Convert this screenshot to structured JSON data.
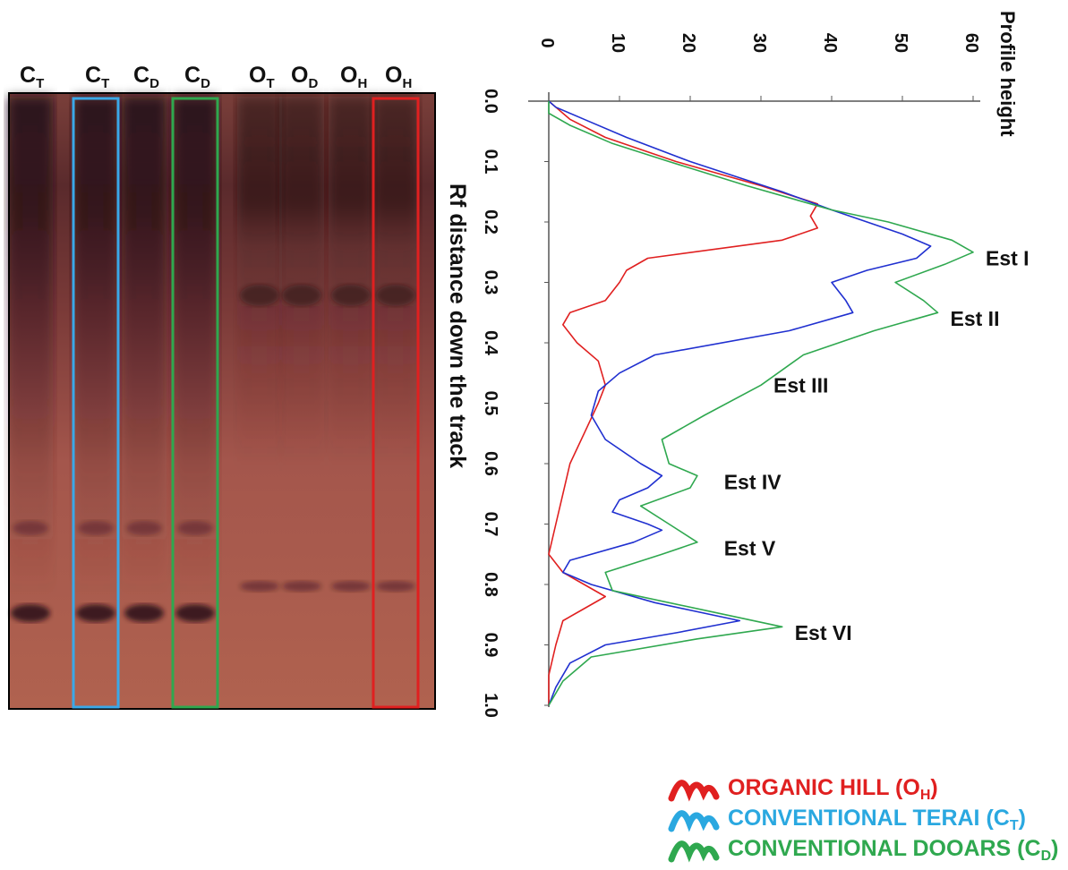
{
  "gel": {
    "lanes": [
      {
        "label": "C",
        "sub": "T"
      },
      {
        "label": "C",
        "sub": "T"
      },
      {
        "label": "C",
        "sub": "D"
      },
      {
        "label": "C",
        "sub": "D"
      },
      {
        "label": "O",
        "sub": "T"
      },
      {
        "label": "O",
        "sub": "D"
      },
      {
        "label": "O",
        "sub": "H"
      },
      {
        "label": "O",
        "sub": "H"
      }
    ],
    "highlighted_lanes": [
      {
        "lane_index": 1,
        "color": "#3aa8e8"
      },
      {
        "lane_index": 3,
        "color": "#2fa84f"
      },
      {
        "lane_index": 7,
        "color": "#e02020"
      }
    ]
  },
  "legend": [
    {
      "text": "ORGANIC  HILL (O",
      "sub": "H",
      "tail": ")",
      "color": "#e02020"
    },
    {
      "text": "CONVENTIONAL TERAI (C",
      "sub": "T",
      "tail": ")",
      "color": "#2aa8e0"
    },
    {
      "text": "CONVENTIONAL DOOARS (C",
      "sub": "D",
      "tail": ")",
      "color": "#2fa84f"
    }
  ],
  "chart_data": {
    "type": "line",
    "orientation": "rotated-90",
    "xlabel": "Rf distance down the track",
    "ylabel": "Profile height",
    "xlim": [
      0,
      1.0
    ],
    "ylim": [
      0,
      60
    ],
    "x_ticks": [
      "0.0",
      "0.1",
      "0.2",
      "0.3",
      "0.4",
      "0.5",
      "0.6",
      "0.7",
      "0.8",
      "0.9",
      "1.0"
    ],
    "y_ticks": [
      "0",
      "10",
      "20",
      "30",
      "40",
      "50",
      "60"
    ],
    "series": [
      {
        "name": "ORGANIC HILL (OH)",
        "color": "#e02020",
        "points": [
          [
            0.0,
            0
          ],
          [
            0.01,
            1
          ],
          [
            0.03,
            3
          ],
          [
            0.06,
            8
          ],
          [
            0.1,
            18
          ],
          [
            0.14,
            30
          ],
          [
            0.17,
            38
          ],
          [
            0.19,
            37
          ],
          [
            0.21,
            38
          ],
          [
            0.23,
            33
          ],
          [
            0.26,
            14
          ],
          [
            0.28,
            11
          ],
          [
            0.3,
            10
          ],
          [
            0.33,
            8
          ],
          [
            0.35,
            3
          ],
          [
            0.37,
            2
          ],
          [
            0.4,
            4
          ],
          [
            0.43,
            7
          ],
          [
            0.47,
            8
          ],
          [
            0.5,
            7
          ],
          [
            0.55,
            5
          ],
          [
            0.6,
            3
          ],
          [
            0.65,
            2
          ],
          [
            0.7,
            1
          ],
          [
            0.75,
            0
          ],
          [
            0.78,
            2
          ],
          [
            0.8,
            5
          ],
          [
            0.82,
            8
          ],
          [
            0.84,
            5
          ],
          [
            0.86,
            2
          ],
          [
            0.9,
            1
          ],
          [
            0.95,
            0
          ],
          [
            1.0,
            0
          ]
        ]
      },
      {
        "name": "CONVENTIONAL TERAI (CT)",
        "color": "#2030d0",
        "points": [
          [
            0.0,
            0
          ],
          [
            0.01,
            1
          ],
          [
            0.03,
            5
          ],
          [
            0.06,
            11
          ],
          [
            0.1,
            20
          ],
          [
            0.15,
            33
          ],
          [
            0.18,
            40
          ],
          [
            0.22,
            50
          ],
          [
            0.24,
            54
          ],
          [
            0.26,
            52
          ],
          [
            0.28,
            45
          ],
          [
            0.3,
            40
          ],
          [
            0.33,
            42
          ],
          [
            0.35,
            43
          ],
          [
            0.38,
            34
          ],
          [
            0.42,
            15
          ],
          [
            0.45,
            10
          ],
          [
            0.48,
            7
          ],
          [
            0.52,
            6
          ],
          [
            0.56,
            8
          ],
          [
            0.6,
            13
          ],
          [
            0.62,
            16
          ],
          [
            0.64,
            14
          ],
          [
            0.66,
            10
          ],
          [
            0.68,
            9
          ],
          [
            0.7,
            14
          ],
          [
            0.71,
            16
          ],
          [
            0.73,
            12
          ],
          [
            0.76,
            3
          ],
          [
            0.78,
            2
          ],
          [
            0.8,
            6
          ],
          [
            0.83,
            15
          ],
          [
            0.86,
            27
          ],
          [
            0.88,
            18
          ],
          [
            0.9,
            8
          ],
          [
            0.93,
            3
          ],
          [
            0.97,
            1
          ],
          [
            1.0,
            0
          ]
        ]
      },
      {
        "name": "CONVENTIONAL DOOARS (CD)",
        "color": "#2fa84f",
        "points": [
          [
            0.0,
            0
          ],
          [
            0.02,
            0
          ],
          [
            0.04,
            3
          ],
          [
            0.07,
            9
          ],
          [
            0.1,
            17
          ],
          [
            0.14,
            28
          ],
          [
            0.18,
            40
          ],
          [
            0.2,
            48
          ],
          [
            0.23,
            57
          ],
          [
            0.25,
            60
          ],
          [
            0.27,
            56
          ],
          [
            0.3,
            49
          ],
          [
            0.33,
            53
          ],
          [
            0.35,
            55
          ],
          [
            0.38,
            46
          ],
          [
            0.42,
            36
          ],
          [
            0.47,
            30
          ],
          [
            0.52,
            22
          ],
          [
            0.56,
            16
          ],
          [
            0.6,
            17
          ],
          [
            0.62,
            21
          ],
          [
            0.64,
            20
          ],
          [
            0.67,
            13
          ],
          [
            0.7,
            17
          ],
          [
            0.73,
            21
          ],
          [
            0.75,
            16
          ],
          [
            0.78,
            8
          ],
          [
            0.81,
            9
          ],
          [
            0.85,
            25
          ],
          [
            0.87,
            33
          ],
          [
            0.89,
            21
          ],
          [
            0.92,
            6
          ],
          [
            0.96,
            2
          ],
          [
            1.0,
            0
          ]
        ]
      }
    ],
    "annotations": [
      {
        "text": "Est I",
        "x": 0.26,
        "y": 60
      },
      {
        "text": "Est II",
        "x": 0.36,
        "y": 55
      },
      {
        "text": "Est III",
        "x": 0.47,
        "y": 30
      },
      {
        "text": "Est IV",
        "x": 0.63,
        "y": 23
      },
      {
        "text": "Est V",
        "x": 0.74,
        "y": 23
      },
      {
        "text": "Est VI",
        "x": 0.88,
        "y": 33
      }
    ]
  }
}
